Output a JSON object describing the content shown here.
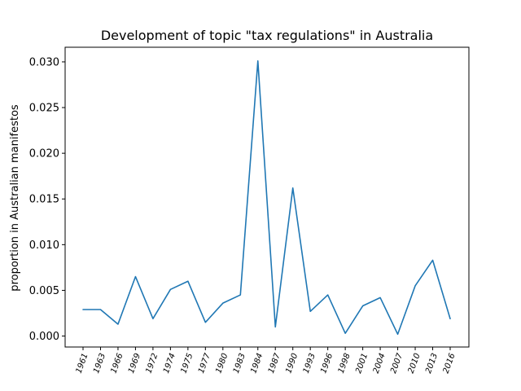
{
  "chart_data": {
    "type": "line",
    "title": "Development of topic \"tax regulations\" in Australia",
    "xlabel": "",
    "ylabel": "proportion in Australian manifestos",
    "categories": [
      "1961",
      "1963",
      "1966",
      "1969",
      "1972",
      "1974",
      "1975",
      "1977",
      "1980",
      "1983",
      "1984",
      "1987",
      "1990",
      "1993",
      "1996",
      "1998",
      "2001",
      "2004",
      "2007",
      "2010",
      "2013",
      "2016"
    ],
    "series": [
      {
        "color": "#1f77b4",
        "values": [
          0.0029,
          0.0029,
          0.0013,
          0.0065,
          0.0019,
          0.0051,
          0.006,
          0.0015,
          0.0036,
          0.0045,
          0.0301,
          0.001,
          0.0162,
          0.0027,
          0.0045,
          0.0003,
          0.0033,
          0.0042,
          0.0002,
          0.0055,
          0.0083,
          0.0019
        ]
      }
    ],
    "ylim": [
      -0.0012,
      0.0316
    ],
    "yticks": [
      "0.000",
      "0.005",
      "0.010",
      "0.015",
      "0.020",
      "0.025",
      "0.030"
    ],
    "grid": false,
    "legend": "none"
  }
}
